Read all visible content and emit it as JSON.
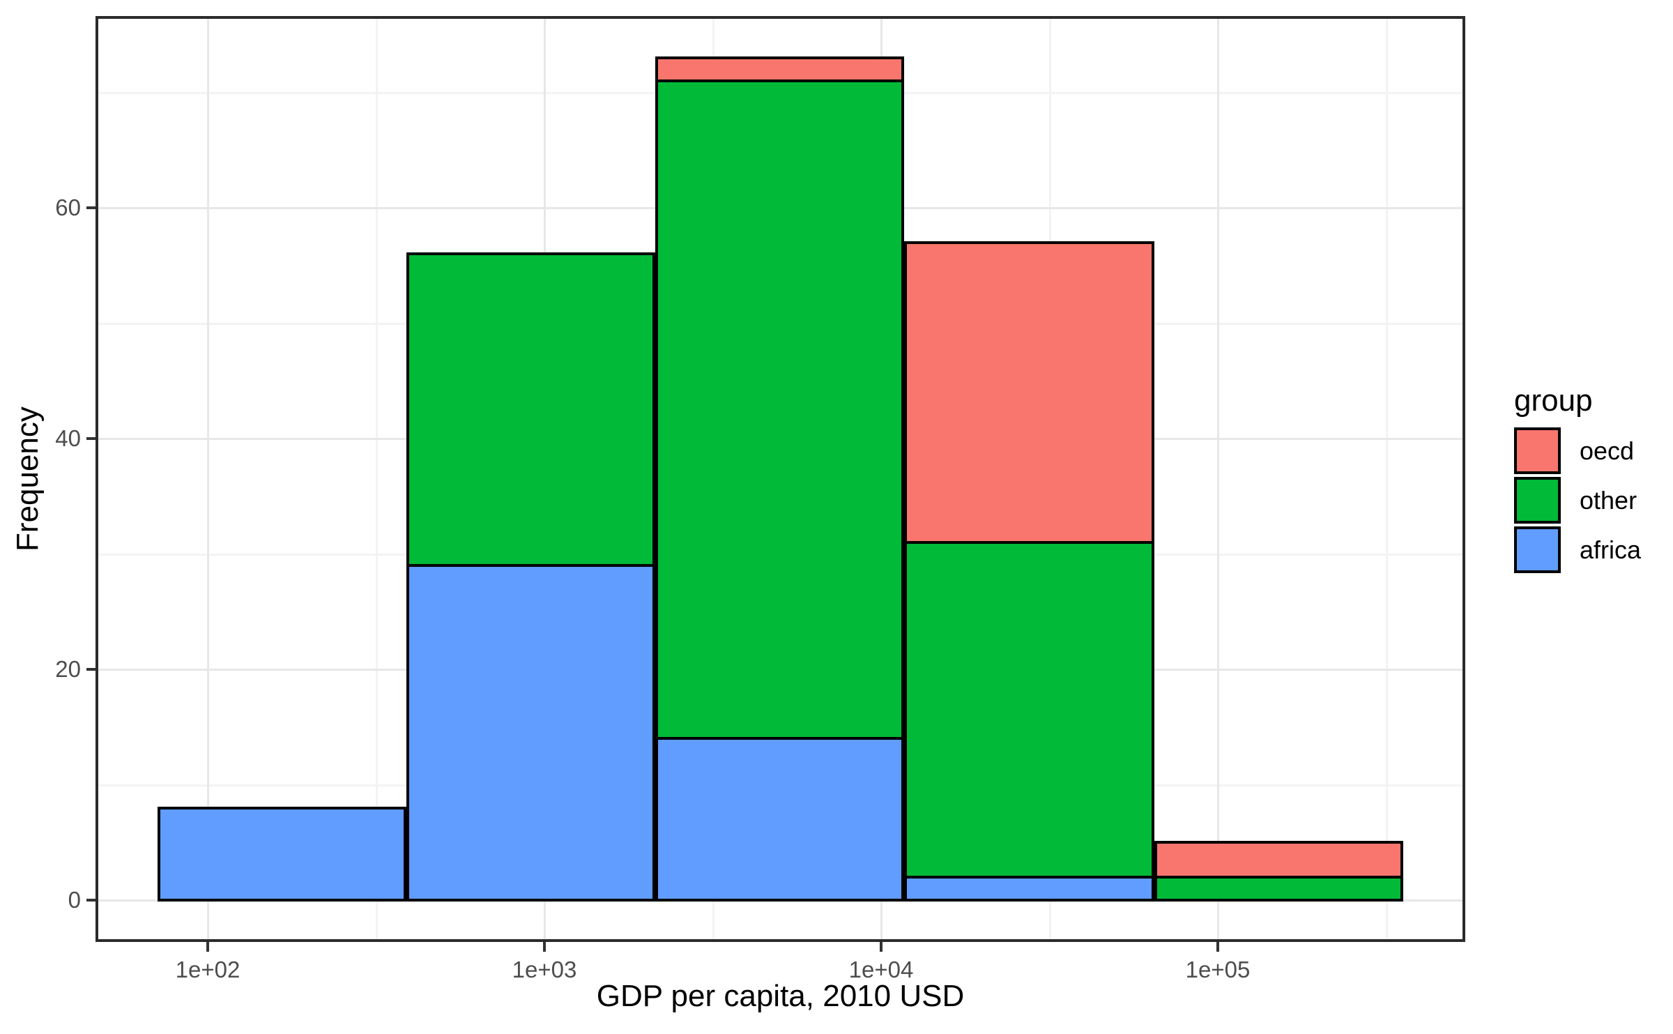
{
  "figure": {
    "background": "#FFFFFF"
  },
  "colors": {
    "panel_border": "#2B2B2B",
    "grid_major": "#E7E7E7",
    "grid_minor": "#F3F3F3",
    "tick_mark": "#333333",
    "tick_label": "#4D4D4D",
    "axis_title": "#000000",
    "bar_outline": "#000000"
  },
  "chart_data": {
    "type": "bar",
    "subtype": "stacked-histogram",
    "title": "",
    "xlabel": "GDP per capita, 2010 USD",
    "ylabel": "Frequency",
    "x_scale": "log10",
    "grid": true,
    "x_tick_labels": [
      "1e+02",
      "1e+03",
      "1e+04",
      "1e+05"
    ],
    "x_tick_log10": [
      2,
      3,
      4,
      5
    ],
    "x_minor_log10": [
      2.5,
      3.5,
      4.5,
      5.5
    ],
    "y_ticks": [
      0,
      20,
      40,
      60
    ],
    "y_minor": [
      10,
      30,
      50,
      70
    ],
    "ylim": [
      -3.65,
      76.65
    ],
    "xlim_log10": [
      1.667,
      5.735
    ],
    "bin_edges_log10": [
      1.851,
      2.59,
      3.329,
      4.068,
      4.811,
      5.551
    ],
    "bin_edges_usd_approx": [
      71,
      390,
      2130,
      11700,
      64700,
      356000
    ],
    "stack_order_bottom_to_top": [
      "africa",
      "other",
      "oecd"
    ],
    "series": [
      {
        "name": "africa",
        "color": "#619CFF",
        "values": [
          8,
          29,
          14,
          2,
          0
        ]
      },
      {
        "name": "other",
        "color": "#00BA38",
        "values": [
          0,
          27,
          57,
          29,
          2
        ]
      },
      {
        "name": "oecd",
        "color": "#F8766D",
        "values": [
          0,
          0,
          2,
          26,
          3
        ]
      }
    ],
    "bar_totals": [
      8,
      56,
      73,
      57,
      5
    ],
    "legend": {
      "title": "group",
      "position": "right",
      "entries": [
        {
          "label": "oecd",
          "color": "#F8766D"
        },
        {
          "label": "other",
          "color": "#00BA38"
        },
        {
          "label": "africa",
          "color": "#619CFF"
        }
      ]
    }
  }
}
